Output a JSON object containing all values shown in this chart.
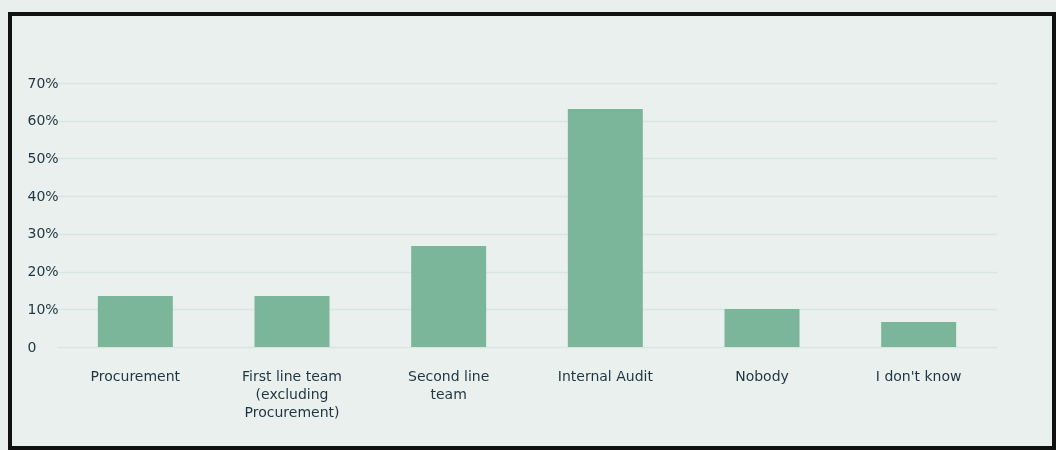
{
  "chart_data": {
    "type": "bar",
    "categories": [
      "Procurement",
      "First line team (excluding Procurement)",
      "Second line team",
      "Internal Audit",
      "Nobody",
      "I don't know"
    ],
    "values": [
      13.5,
      13.5,
      26.8,
      63.1,
      10.1,
      6.6
    ],
    "color": "#7bb69a",
    "ylim": [
      0,
      70
    ],
    "yticks": [
      {
        "value": 0,
        "label": "0"
      },
      {
        "value": 10,
        "label": "10%"
      },
      {
        "value": 20,
        "label": "20%"
      },
      {
        "value": 30,
        "label": "30%"
      },
      {
        "value": 40,
        "label": "40%"
      },
      {
        "value": 50,
        "label": "50%"
      },
      {
        "value": 60,
        "label": "60%"
      },
      {
        "value": 70,
        "label": "70%"
      }
    ],
    "grid": "y"
  }
}
